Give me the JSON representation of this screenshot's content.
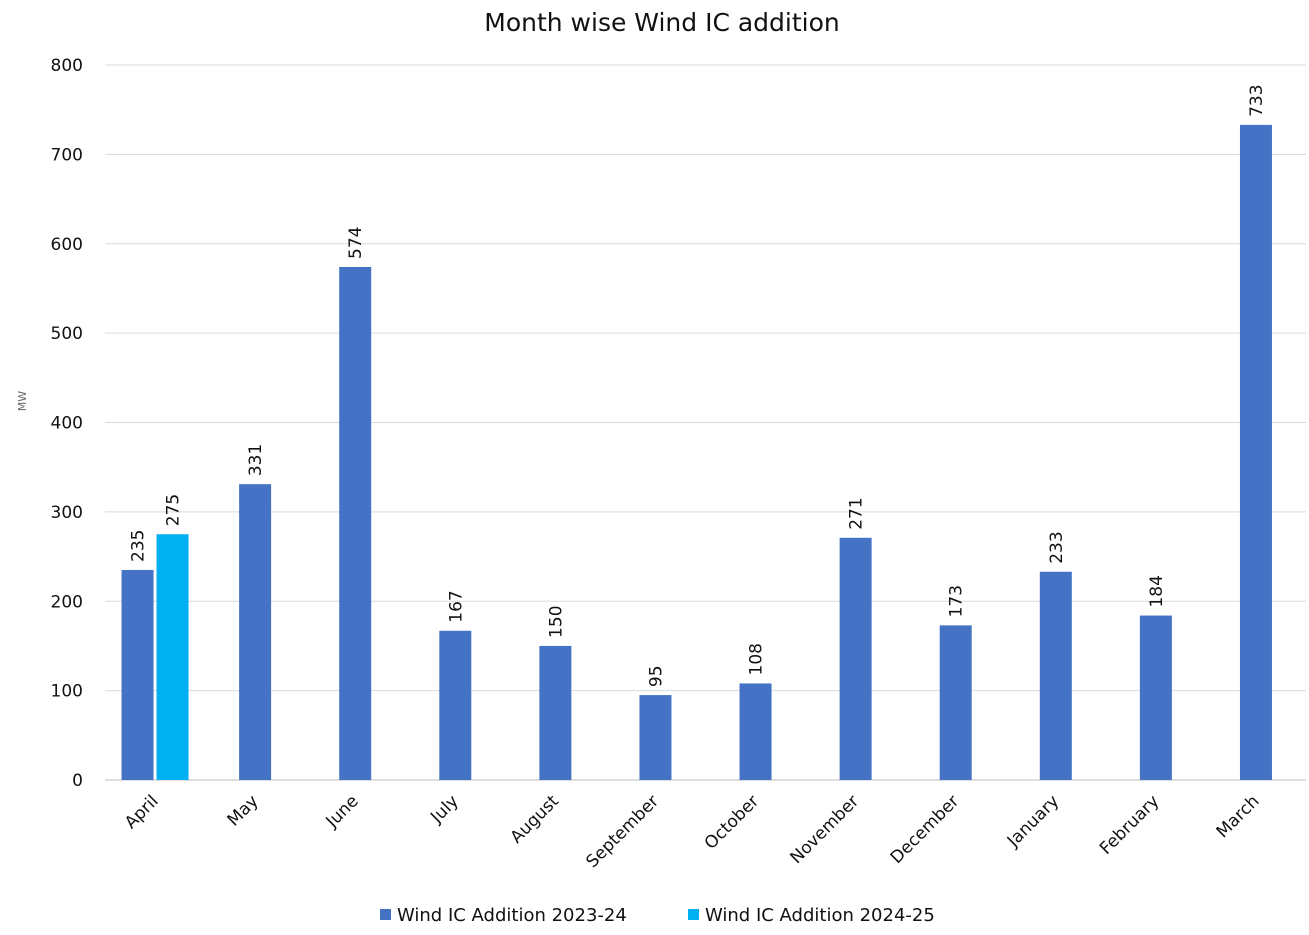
{
  "chart_data": {
    "type": "bar",
    "title": "Month wise Wind IC addition",
    "ylabel": "MW",
    "xlabel": "",
    "ylim": [
      0,
      800
    ],
    "yticks": [
      0,
      100,
      200,
      300,
      400,
      500,
      600,
      700,
      800
    ],
    "grid": true,
    "legend_position": "bottom",
    "categories": [
      "April",
      "May",
      "June",
      "July",
      "August",
      "September",
      "October",
      "November",
      "December",
      "January",
      "February",
      "March"
    ],
    "series": [
      {
        "name": "Wind IC Addition 2023-24",
        "color": "#4472C4",
        "values": [
          235,
          331,
          574,
          167,
          150,
          95,
          108,
          271,
          173,
          233,
          184,
          733
        ]
      },
      {
        "name": "Wind IC Addition 2024-25",
        "color": "#00B0F0",
        "values": [
          275,
          null,
          null,
          null,
          null,
          null,
          null,
          null,
          null,
          null,
          null,
          null
        ]
      }
    ]
  }
}
